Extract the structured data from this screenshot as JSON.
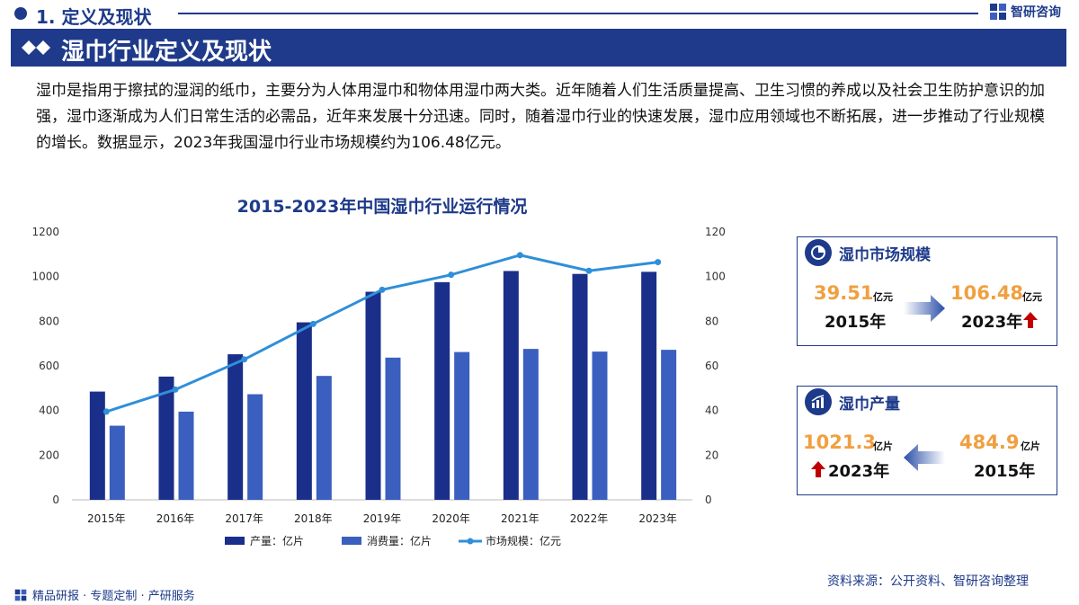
{
  "header": {
    "section": "1. 定义及现状",
    "brand": "智研咨询"
  },
  "banner": {
    "title": "湿巾行业定义及现状"
  },
  "paragraph": "湿巾是指用于擦拭的湿润的纸巾，主要分为人体用湿巾和物体用湿巾两大类。近年随着人们生活质量提高、卫生习惯的养成以及社会卫生防护意识的加强，湿巾逐渐成为人们日常生活的必需品，近年来发展十分迅速。同时，随着湿巾行业的快速发展，湿巾应用领域也不断拓展，进一步推动了行业规模的增长。数据显示，2023年我国湿巾行业市场规模约为106.48亿元。",
  "chart_data": {
    "type": "bar",
    "title": "2015-2023年中国湿巾行业运行情况",
    "categories": [
      "2015年",
      "2016年",
      "2017年",
      "2018年",
      "2019年",
      "2020年",
      "2021年",
      "2022年",
      "2023年"
    ],
    "series": [
      {
        "name": "产量：亿片",
        "type": "bar",
        "axis": "left",
        "color": "#1a2f8a",
        "values": [
          484.9,
          552,
          652,
          795,
          932,
          975,
          1025,
          1012,
          1021.3
        ]
      },
      {
        "name": "消费量：亿片",
        "type": "bar",
        "axis": "left",
        "color": "#3a5fbf",
        "values": [
          332,
          395,
          473,
          555,
          637,
          662,
          676,
          664,
          672
        ]
      },
      {
        "name": "市场规模：亿元",
        "type": "line",
        "axis": "right",
        "color": "#2f8fd8",
        "values": [
          39.51,
          49.4,
          62.9,
          78.8,
          94.1,
          100.8,
          109.6,
          102.6,
          106.48
        ]
      }
    ],
    "y_left": {
      "min": 0,
      "max": 1200,
      "ticks": [
        0,
        200,
        400,
        600,
        800,
        1000,
        1200
      ]
    },
    "y_right": {
      "min": 0,
      "max": 120,
      "ticks": [
        0,
        20,
        40,
        60,
        80,
        100,
        120
      ]
    },
    "legend": "bottom",
    "grid": false
  },
  "cards": {
    "market": {
      "label": "湿巾市场规模",
      "from_value": "39.51",
      "from_unit": "亿元",
      "from_year": "2015年",
      "to_value": "106.48",
      "to_unit": "亿元",
      "to_year": "2023年"
    },
    "output": {
      "label": "湿巾产量",
      "to_value": "1021.3",
      "to_unit": "亿片",
      "to_year": "2023年",
      "from_value": "484.9",
      "from_unit": "亿片",
      "from_year": "2015年"
    }
  },
  "footer": {
    "left": "精品研报 · 专题定制 · 产研服务",
    "right": "资料来源：公开资料、智研咨询整理"
  },
  "colors": {
    "primary": "#1e3a8a",
    "accent": "#f0a040",
    "up_arrow": "#c00000"
  }
}
